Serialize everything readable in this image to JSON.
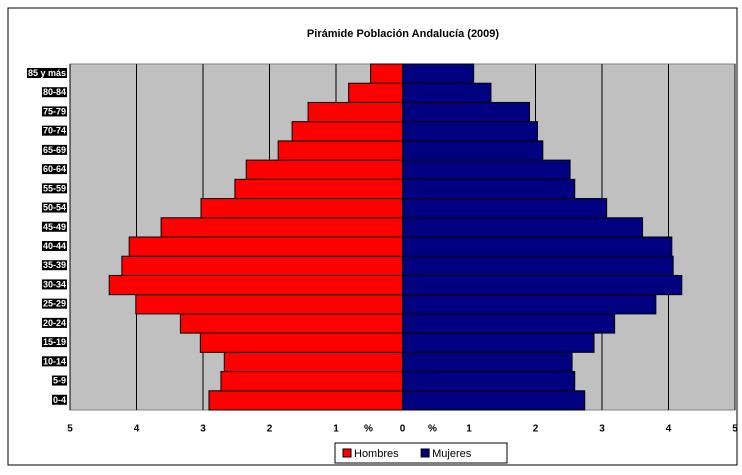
{
  "chart_data": {
    "type": "pyramid",
    "title": "Pirámide Población Andalucía (2009)",
    "categories": [
      "0-4",
      "5-9",
      "10-14",
      "15-19",
      "20-24",
      "25-29",
      "30-34",
      "35-39",
      "40-44",
      "45-49",
      "50-54",
      "55-59",
      "60-64",
      "65-69",
      "70-74",
      "75-79",
      "80-84",
      "85 y más"
    ],
    "series": [
      {
        "name": "Hombres",
        "color": "#ff0000",
        "direction": "left",
        "values": [
          2.91,
          2.73,
          2.68,
          3.04,
          3.34,
          4.01,
          4.41,
          4.22,
          4.11,
          3.63,
          3.03,
          2.52,
          2.35,
          1.87,
          1.66,
          1.42,
          0.81,
          0.48
        ]
      },
      {
        "name": "Mujeres",
        "color": "#000080",
        "direction": "right",
        "values": [
          2.74,
          2.59,
          2.55,
          2.88,
          3.19,
          3.81,
          4.2,
          4.07,
          4.05,
          3.61,
          3.07,
          2.59,
          2.52,
          2.11,
          2.03,
          1.91,
          1.33,
          1.07
        ]
      }
    ],
    "xlim": [
      -5,
      5
    ],
    "xticks": [
      {
        "value": -5,
        "label": "5"
      },
      {
        "value": -4,
        "label": "4"
      },
      {
        "value": -3,
        "label": "3"
      },
      {
        "value": -2,
        "label": "2"
      },
      {
        "value": -1,
        "label": "1"
      },
      0,
      1,
      2,
      3,
      4,
      5
    ],
    "xlabels": [
      "%",
      "%"
    ],
    "grid": true,
    "plot_background": "#c0c0c0",
    "legend": "bottom"
  }
}
